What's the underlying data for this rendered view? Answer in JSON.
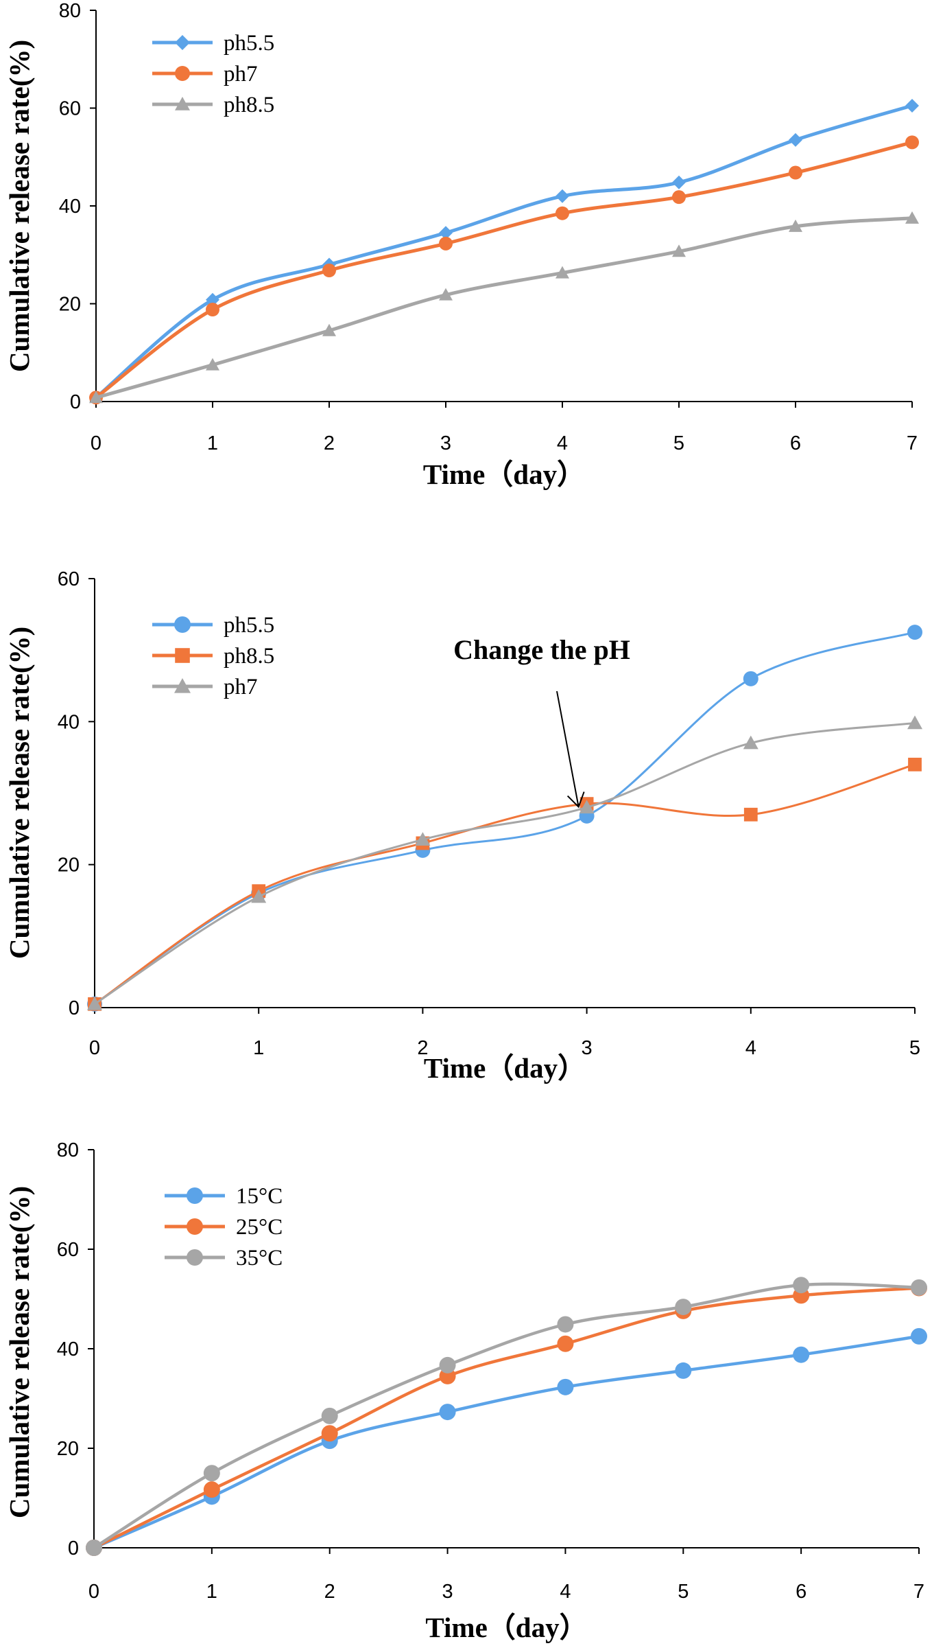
{
  "chart_data": [
    {
      "type": "line",
      "xlabel": "Time（day）",
      "ylabel": "Cumulative release rate(%)",
      "x": [
        0,
        1,
        2,
        3,
        4,
        5,
        6,
        7
      ],
      "xlim": [
        0,
        7
      ],
      "ylim": [
        0,
        80
      ],
      "xticks": [
        "0",
        "1",
        "2",
        "3",
        "4",
        "5",
        "6",
        "7"
      ],
      "yticks": [
        "0",
        "20",
        "40",
        "60",
        "80"
      ],
      "grid": false,
      "legend_position": "top-left",
      "series": [
        {
          "name": "ph5.5",
          "color": "#5ba3e8",
          "marker": "diamond",
          "values": [
            0.8,
            20.8,
            28.0,
            34.5,
            42.0,
            44.8,
            53.5,
            60.5
          ]
        },
        {
          "name": "ph7",
          "color": "#f0763a",
          "marker": "circle",
          "values": [
            0.8,
            18.8,
            26.8,
            32.3,
            38.5,
            41.8,
            46.8,
            53.0
          ]
        },
        {
          "name": "ph8.5",
          "color": "#a6a6a6",
          "marker": "triangle",
          "values": [
            0.8,
            7.5,
            14.5,
            21.8,
            26.3,
            30.7,
            35.8,
            37.5
          ]
        }
      ]
    },
    {
      "type": "line",
      "xlabel": "Time（day）",
      "ylabel": "Cumulative release rate(%)",
      "x": [
        0,
        1,
        2,
        3,
        4,
        5
      ],
      "xlim": [
        0,
        5
      ],
      "ylim": [
        0,
        60
      ],
      "xticks": [
        "0",
        "1",
        "2",
        "3",
        "4",
        "5"
      ],
      "yticks": [
        "0",
        "20",
        "40",
        "60"
      ],
      "grid": false,
      "legend_position": "top-left",
      "annotation": {
        "text": "Change the pH",
        "x": 2.95,
        "y": 27.5
      },
      "series": [
        {
          "name": "ph5.5",
          "color": "#5ba3e8",
          "marker": "circle",
          "values": [
            0.5,
            16.0,
            22.0,
            26.8,
            46.0,
            52.5
          ]
        },
        {
          "name": "ph8.5",
          "color": "#f0763a",
          "marker": "square",
          "values": [
            0.5,
            16.3,
            23.0,
            28.5,
            27.0,
            34.0
          ]
        },
        {
          "name": "ph7",
          "color": "#a6a6a6",
          "marker": "triangle",
          "values": [
            0.5,
            15.5,
            23.5,
            28.0,
            37.0,
            39.8
          ]
        }
      ]
    },
    {
      "type": "line",
      "xlabel": "Time（day）",
      "ylabel": "Cumulative release  rate(%)",
      "x": [
        0,
        1,
        2,
        3,
        4,
        5,
        6,
        7
      ],
      "xlim": [
        0,
        7
      ],
      "ylim": [
        0,
        80
      ],
      "xticks": [
        "0",
        "1",
        "2",
        "3",
        "4",
        "5",
        "6",
        "7"
      ],
      "yticks": [
        "0",
        "20",
        "40",
        "60",
        "80"
      ],
      "grid": false,
      "legend_position": "top-left",
      "series": [
        {
          "name": "15°C",
          "color": "#5ba3e8",
          "marker": "circle",
          "values": [
            0.0,
            10.3,
            21.5,
            27.3,
            32.3,
            35.6,
            38.8,
            42.5
          ]
        },
        {
          "name": "25°C",
          "color": "#f0763a",
          "marker": "circle",
          "values": [
            0.0,
            11.7,
            23.0,
            34.5,
            41.0,
            47.6,
            50.7,
            52.2
          ]
        },
        {
          "name": "35°C",
          "color": "#a6a6a6",
          "marker": "circle",
          "values": [
            0.0,
            15.0,
            26.5,
            36.7,
            44.9,
            48.4,
            52.8,
            52.3
          ]
        }
      ]
    }
  ]
}
